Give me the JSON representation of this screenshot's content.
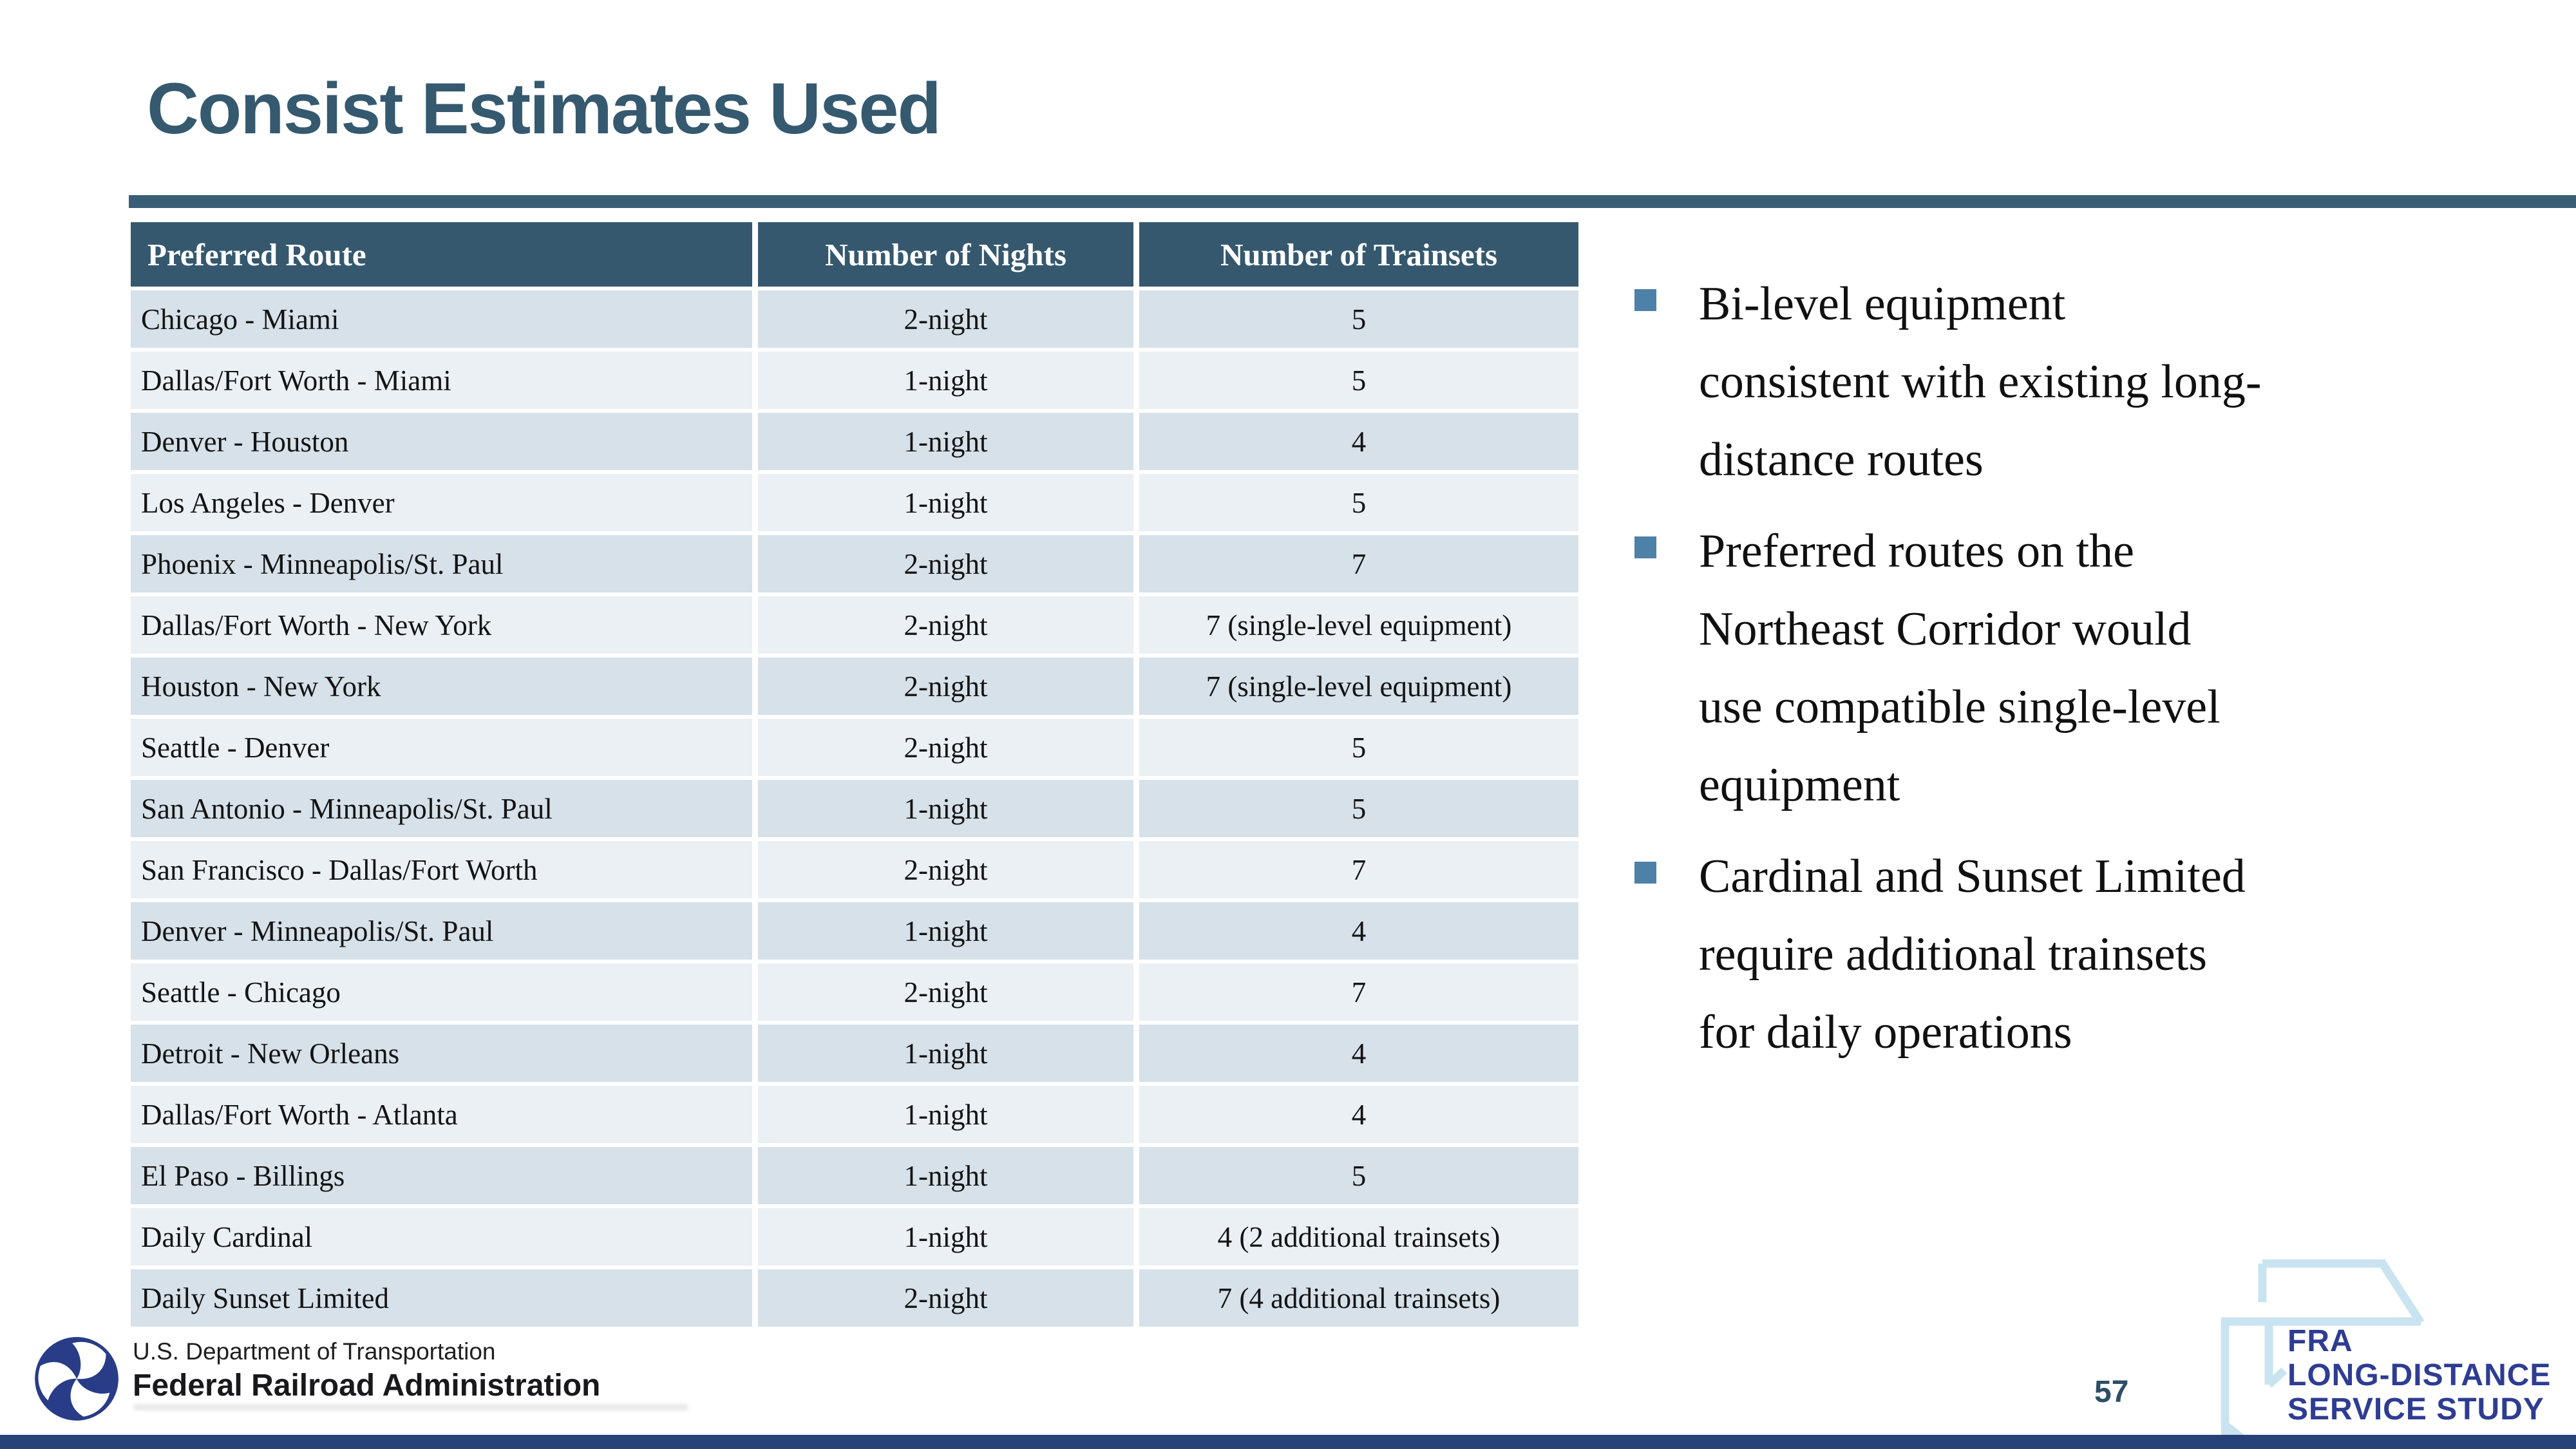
{
  "slide": {
    "title": "Consist Estimates Used",
    "page_number": "57"
  },
  "table": {
    "headers": [
      "Preferred Route",
      "Number of Nights",
      "Number of Trainsets"
    ],
    "rows": [
      {
        "route": "Chicago - Miami",
        "nights": "2-night",
        "trainsets": "5"
      },
      {
        "route": "Dallas/Fort Worth - Miami",
        "nights": "1-night",
        "trainsets": "5"
      },
      {
        "route": "Denver - Houston",
        "nights": "1-night",
        "trainsets": "4"
      },
      {
        "route": "Los Angeles - Denver",
        "nights": "1-night",
        "trainsets": "5"
      },
      {
        "route": "Phoenix - Minneapolis/St. Paul",
        "nights": "2-night",
        "trainsets": "7"
      },
      {
        "route": "Dallas/Fort Worth - New York",
        "nights": "2-night",
        "trainsets": "7 (single-level equipment)"
      },
      {
        "route": "Houston - New York",
        "nights": "2-night",
        "trainsets": "7 (single-level equipment)"
      },
      {
        "route": "Seattle - Denver",
        "nights": "2-night",
        "trainsets": "5"
      },
      {
        "route": "San Antonio - Minneapolis/St. Paul",
        "nights": "1-night",
        "trainsets": "5"
      },
      {
        "route": "San Francisco - Dallas/Fort Worth",
        "nights": "2-night",
        "trainsets": "7"
      },
      {
        "route": "Denver - Minneapolis/St. Paul",
        "nights": "1-night",
        "trainsets": "4"
      },
      {
        "route": "Seattle - Chicago",
        "nights": "2-night",
        "trainsets": "7"
      },
      {
        "route": "Detroit - New Orleans",
        "nights": "1-night",
        "trainsets": "4"
      },
      {
        "route": "Dallas/Fort Worth - Atlanta",
        "nights": "1-night",
        "trainsets": "4"
      },
      {
        "route": "El Paso - Billings",
        "nights": "1-night",
        "trainsets": "5"
      },
      {
        "route": "Daily Cardinal",
        "nights": "1-night",
        "trainsets": "4 (2 additional trainsets)"
      },
      {
        "route": "Daily Sunset Limited",
        "nights": "2-night",
        "trainsets": "7 (4 additional trainsets)"
      }
    ]
  },
  "bullets": {
    "items": [
      {
        "lines": [
          "Bi-level equipment",
          "consistent with existing long-",
          "distance routes"
        ]
      },
      {
        "lines": [
          "Preferred routes on the",
          "Northeast Corridor would",
          "use compatible single-level",
          "equipment"
        ]
      },
      {
        "lines": [
          "Cardinal and Sunset Limited",
          "require additional trainsets",
          "for daily operations"
        ]
      }
    ]
  },
  "footer": {
    "dot_logo": {
      "line1": "U.S. Department of Transportation",
      "line2": "Federal Railroad Administration"
    },
    "fra_logo": {
      "line1": "FRA",
      "line2": "LONG-DISTANCE",
      "line3": "SERVICE STUDY"
    }
  },
  "colors": {
    "title": "#35596f",
    "divider": "#3a5e75",
    "table_header_bg": "#35586e",
    "row_odd_bg": "#d6e1e9",
    "row_even_bg": "#eaf0f4",
    "bullet_marker": "#4e81a8",
    "bottom_bar": "#264279",
    "page_number": "#2d4f66",
    "dot_circle": "#283c87",
    "fra_text": "#2e3d92",
    "fra_icon": "#c9e4f0"
  }
}
